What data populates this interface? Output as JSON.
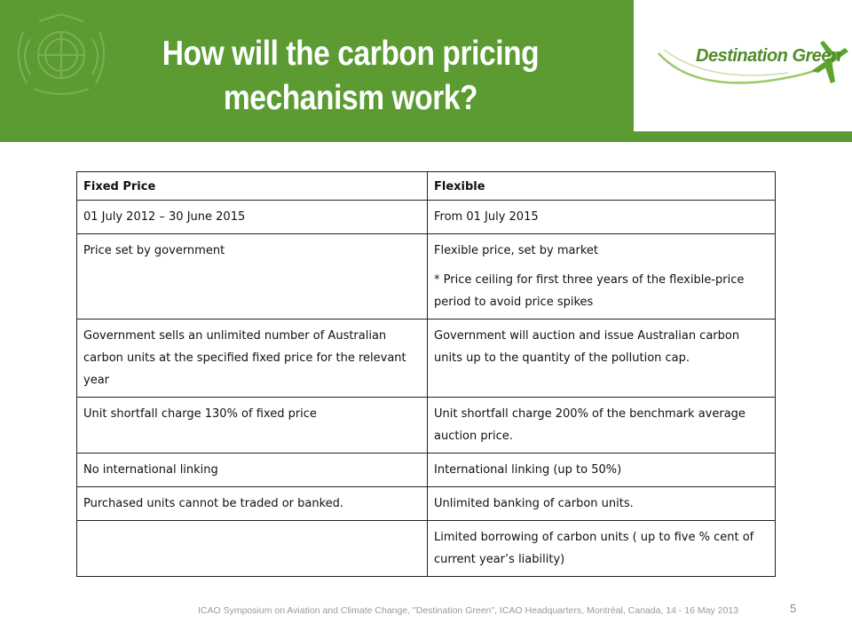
{
  "header": {
    "title_line1": "How will the carbon pricing",
    "title_line2": "mechanism work?",
    "emblem_icon": "icao-emblem-icon",
    "brand_name": "Destination Green",
    "brand_icon": "airplane-icon",
    "colors": {
      "header_bg": "#5b9b32",
      "brand_green": "#4f8d28"
    }
  },
  "table": {
    "headers": [
      "Fixed Price",
      "Flexible"
    ],
    "rows": [
      [
        "01 July 2012 – 30 June 2015",
        "From 01 July 2015"
      ],
      [
        "Price set by government",
        "Flexible price, set by market"
      ],
      [
        "Government sells an unlimited number of Australian carbon units at the specified fixed price for the relevant year",
        "Government will auction and issue Australian carbon units up to the quantity of the pollution cap."
      ],
      [
        "Unit shortfall charge  130% of fixed price",
        "Unit shortfall charge 200% of the benchmark average auction price."
      ],
      [
        "No international linking",
        "International linking (up to 50%)"
      ],
      [
        "Purchased units cannot be traded or banked.",
        "Unlimited banking of carbon units."
      ],
      [
        "",
        "Limited borrowing of carbon units  ( up to five % cent of current year’s liability)"
      ]
    ],
    "row2_note": "* Price ceiling for first three years of the flexible-price period to avoid price spikes"
  },
  "footer": {
    "text": "ICAO Symposium on Aviation and Climate Change, \"Destination Green\", ICAO Headquarters, Montréal, Canada, 14 - 16 May 2013",
    "page_number": "5"
  }
}
